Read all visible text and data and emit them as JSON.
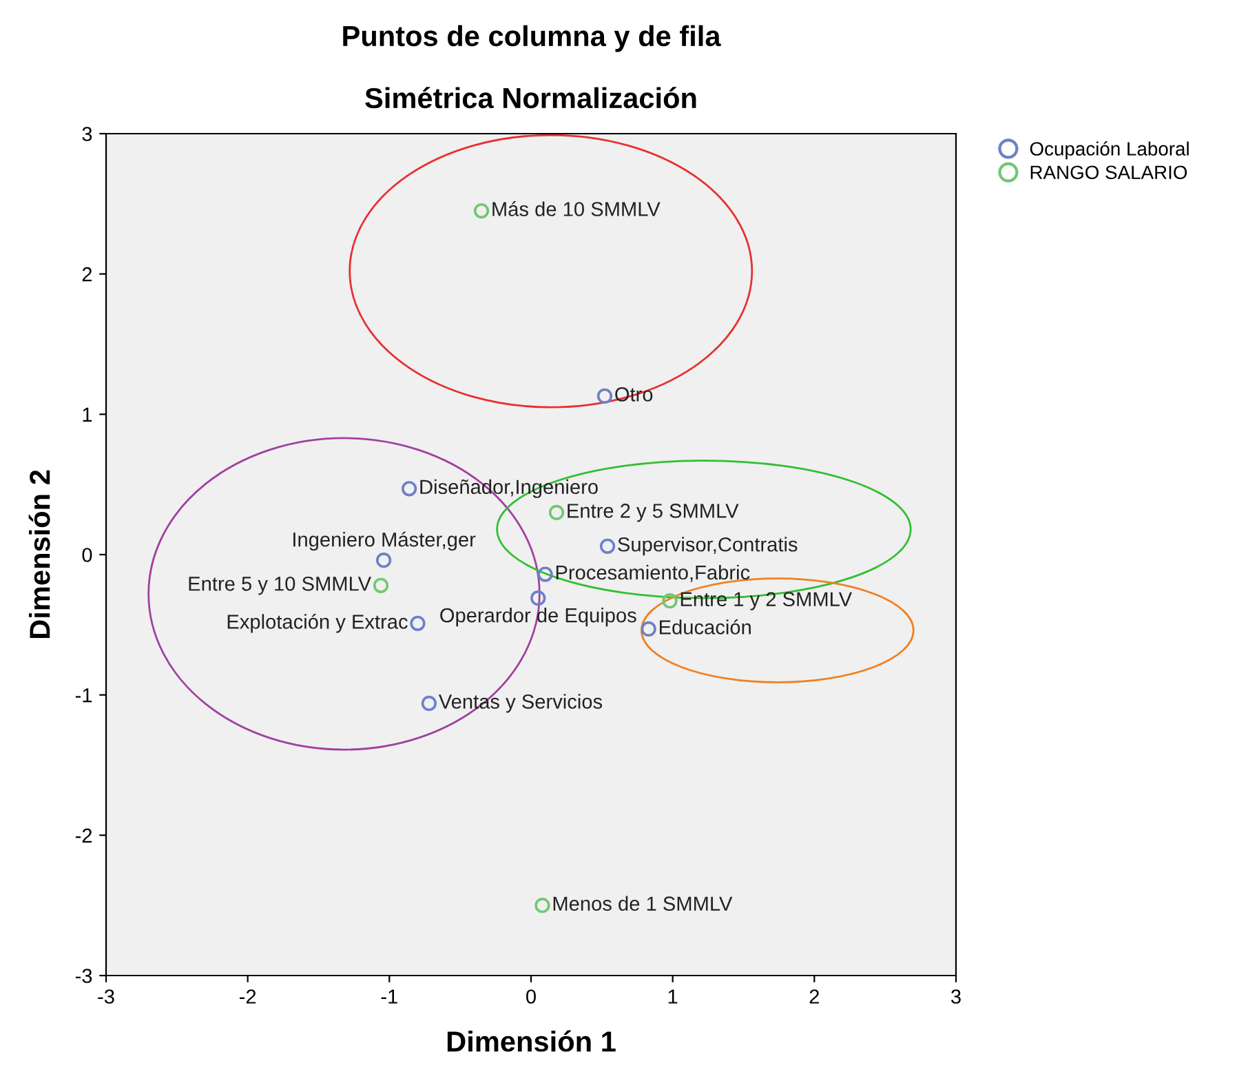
{
  "chart_data": {
    "type": "scatter",
    "title": "Puntos de columna y de fila",
    "subtitle": "Simétrica Normalización",
    "xlabel": "Dimensión 1",
    "ylabel": "Dimensión 2",
    "xlim": [
      -3,
      3
    ],
    "ylim": [
      -3,
      3
    ],
    "xticks": [
      -3,
      -2,
      -1,
      0,
      1,
      2,
      3
    ],
    "yticks": [
      -3,
      -2,
      -1,
      0,
      1,
      2,
      3
    ],
    "grid": false,
    "legend": "top right",
    "marker": "circle",
    "series": [
      {
        "name": "Ocupación Laboral",
        "color": "#6f7fc8",
        "x": [
          0.52,
          -0.86,
          -1.04,
          0.54,
          0.1,
          0.05,
          -0.8,
          0.83,
          -0.72
        ],
        "values": [
          1.13,
          0.47,
          -0.04,
          0.06,
          -0.14,
          -0.31,
          -0.49,
          -0.53,
          -1.06
        ]
      },
      {
        "name": "RANGO SALARIO",
        "color": "#70c870",
        "x": [
          -0.35,
          0.18,
          -1.06,
          0.98,
          0.08
        ],
        "values": [
          2.45,
          0.3,
          -0.22,
          -0.33,
          -2.5
        ]
      }
    ],
    "annotations": [
      {
        "text": "Otro",
        "x": 0.52,
        "y": 1.13
      },
      {
        "text": "Diseñador,Ingeniero",
        "x": -0.86,
        "y": 0.47
      },
      {
        "text": "Ingeniero Máster,ger",
        "x": -1.04,
        "y": -0.04
      },
      {
        "text": "Supervisor,Contratis",
        "x": 0.54,
        "y": 0.06
      },
      {
        "text": "Procesamiento,Fabric",
        "x": 0.1,
        "y": -0.14
      },
      {
        "text": "Operardor de Equipos",
        "x": 0.05,
        "y": -0.31
      },
      {
        "text": "Explotación y Extrac",
        "x": -0.8,
        "y": -0.49
      },
      {
        "text": "Educación",
        "x": 0.83,
        "y": -0.53
      },
      {
        "text": "Ventas y Servicios",
        "x": -0.72,
        "y": -1.06
      },
      {
        "text": "Más de 10 SMMLV",
        "x": -0.35,
        "y": 2.45
      },
      {
        "text": "Entre 2 y 5 SMMLV",
        "x": 0.18,
        "y": 0.3
      },
      {
        "text": "Entre 5 y 10 SMMLV",
        "x": -1.06,
        "y": -0.22
      },
      {
        "text": "Entre 1 y 2 SMMLV",
        "x": 0.98,
        "y": -0.33
      },
      {
        "text": "Menos de 1 SMMLV",
        "x": 0.08,
        "y": -2.5
      }
    ]
  }
}
